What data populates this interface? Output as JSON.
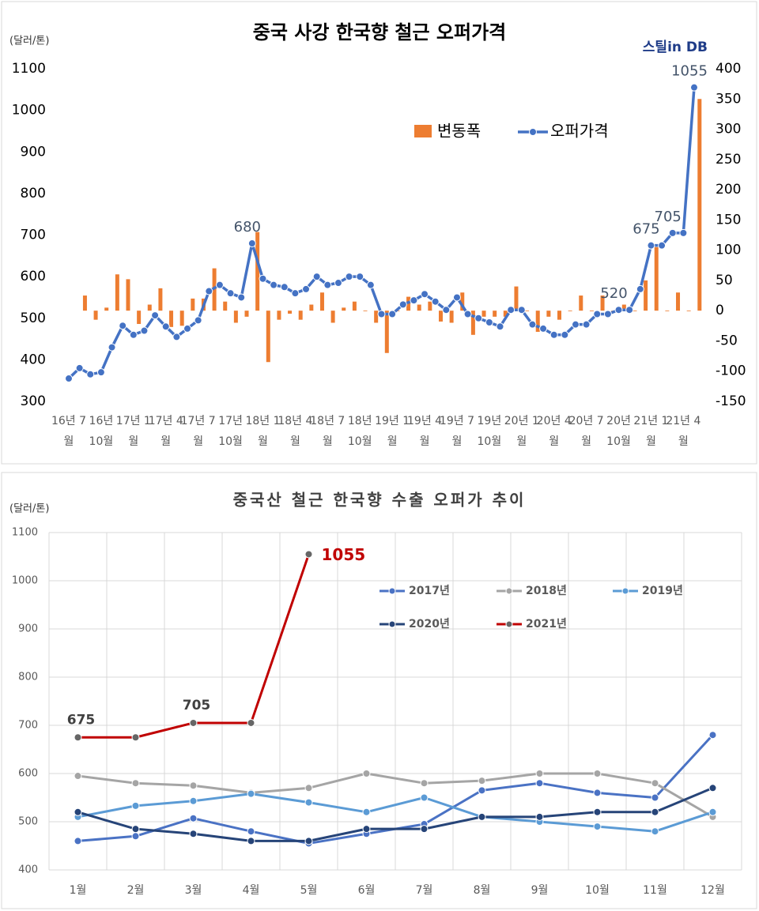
{
  "chart_data": [
    {
      "type": "combo",
      "title": "중국 사강 한국향 철근 오퍼가격",
      "y_label": "(달러/톤)",
      "source": "스틸in DB",
      "categories": [
        "16년 7월",
        null,
        null,
        "16년 10월",
        null,
        null,
        "17년 1월",
        null,
        null,
        "17년 4월",
        null,
        null,
        "17년 7월",
        null,
        null,
        "17년 10월",
        null,
        null,
        "18년 1월",
        null,
        null,
        "18년 4월",
        null,
        null,
        "18년 7월",
        null,
        null,
        "18년 10월",
        null,
        null,
        "19년 1월",
        null,
        null,
        "19년 4월",
        null,
        null,
        "19년 7월",
        null,
        null,
        "19년 10월",
        null,
        null,
        "20년 1월",
        null,
        null,
        "20년 4월",
        null,
        null,
        "20년 7월",
        null,
        null,
        "20년 10월",
        null,
        null,
        "21년 1월",
        null,
        null,
        "21년 4월",
        null
      ],
      "series": [
        {
          "name": "변동폭",
          "type": "bar",
          "axis": "y2",
          "color": "#ed7d31",
          "values": [
            null,
            25,
            -15,
            5,
            60,
            52,
            -22,
            10,
            37,
            -27,
            -25,
            20,
            20,
            70,
            15,
            -20,
            -10,
            130,
            -85,
            -15,
            -5,
            -15,
            10,
            30,
            -20,
            5,
            15,
            0,
            -20,
            -70,
            0,
            23,
            10,
            15,
            -18,
            -20,
            30,
            -40,
            -10,
            -10,
            -10,
            40,
            0,
            -35,
            -10,
            -15,
            0,
            25,
            0,
            25,
            0,
            10,
            0,
            50,
            105,
            0,
            30,
            0,
            350
          ]
        },
        {
          "name": "오퍼가격",
          "type": "line",
          "color": "#4472c4",
          "values": [
            355,
            380,
            365,
            370,
            430,
            482,
            460,
            470,
            507,
            480,
            455,
            475,
            495,
            565,
            580,
            560,
            550,
            680,
            595,
            580,
            575,
            560,
            570,
            600,
            580,
            585,
            600,
            600,
            580,
            510,
            510,
            533,
            543,
            558,
            540,
            520,
            550,
            510,
            500,
            490,
            480,
            520,
            520,
            485,
            475,
            460,
            460,
            485,
            485,
            510,
            510,
            520,
            520,
            570,
            675,
            675,
            705,
            705,
            1055
          ],
          "value_labels": [
            null,
            null,
            null,
            null,
            null,
            null,
            null,
            null,
            null,
            null,
            null,
            null,
            null,
            null,
            null,
            null,
            null,
            "680",
            null,
            null,
            null,
            null,
            null,
            null,
            null,
            null,
            null,
            null,
            null,
            null,
            null,
            null,
            null,
            null,
            null,
            null,
            null,
            null,
            null,
            null,
            null,
            null,
            null,
            null,
            null,
            null,
            null,
            null,
            null,
            null,
            null,
            "520",
            null,
            null,
            "675",
            null,
            "705",
            null,
            "1055"
          ]
        }
      ],
      "ylim": [
        300,
        1100
      ],
      "yticks": [
        300,
        400,
        500,
        600,
        700,
        800,
        900,
        1000,
        1100
      ],
      "y2lim": [
        -150,
        400
      ],
      "y2ticks": [
        -150,
        -100,
        -50,
        0,
        50,
        100,
        150,
        200,
        250,
        300,
        350,
        400
      ],
      "grid": false,
      "legend": "top-right"
    },
    {
      "type": "line",
      "title": "중국산 철근 한국향 수출 오퍼가 추이",
      "y_label": "(달러/톤)",
      "categories": [
        "1월",
        "2월",
        "3월",
        "4월",
        "5월",
        "6월",
        "7월",
        "8월",
        "9월",
        "10월",
        "11월",
        "12월"
      ],
      "series": [
        {
          "name": "2017년",
          "color": "#4a72c4",
          "values": [
            460,
            470,
            507,
            480,
            455,
            475,
            495,
            565,
            580,
            560,
            550,
            680
          ]
        },
        {
          "name": "2018년",
          "color": "#a5a5a5",
          "values": [
            595,
            580,
            575,
            560,
            570,
            600,
            580,
            585,
            600,
            600,
            580,
            510
          ]
        },
        {
          "name": "2019년",
          "color": "#5b9bd5",
          "values": [
            510,
            533,
            543,
            558,
            540,
            520,
            550,
            510,
            500,
            490,
            480,
            520
          ]
        },
        {
          "name": "2020년",
          "color": "#264478",
          "values": [
            520,
            485,
            475,
            460,
            460,
            485,
            485,
            510,
            510,
            520,
            520,
            570
          ]
        },
        {
          "name": "2021년",
          "color": "#c00000",
          "marker_color": "#666666",
          "values": [
            675,
            675,
            705,
            705,
            1055,
            null,
            null,
            null,
            null,
            null,
            null,
            null
          ],
          "value_labels": [
            "675",
            null,
            "705",
            null,
            "1055",
            null,
            null,
            null,
            null,
            null,
            null,
            null
          ]
        }
      ],
      "ylim": [
        400,
        1100
      ],
      "yticks": [
        400,
        500,
        600,
        700,
        800,
        900,
        1000,
        1100
      ],
      "grid": true,
      "legend": "top-right"
    }
  ]
}
